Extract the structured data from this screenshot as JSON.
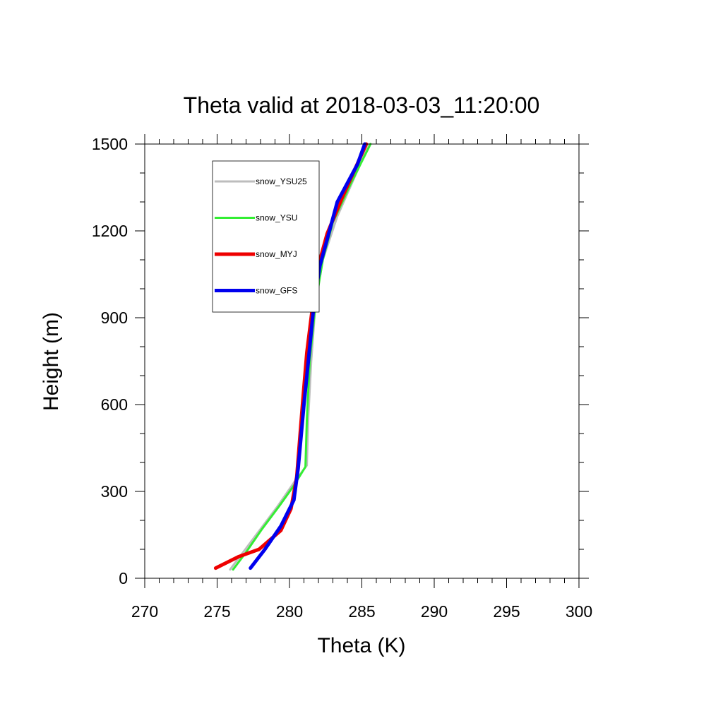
{
  "chart_data": {
    "type": "line",
    "title": "Theta valid at 2018-03-03_11:20:00",
    "xlabel": "Theta (K)",
    "ylabel": "Height (m)",
    "xlim": [
      270,
      300
    ],
    "ylim": [
      0,
      1500
    ],
    "xticks": [
      "270",
      "275",
      "280",
      "285",
      "290",
      "295",
      "300"
    ],
    "yticks": [
      "0",
      "300",
      "600",
      "900",
      "1200",
      "1500"
    ],
    "grid": false,
    "legend_position": "top-left",
    "series": [
      {
        "name": "snow_YSU25",
        "color": "#bdbdbd",
        "line_width": 3,
        "points": [
          [
            275.9,
            30
          ],
          [
            276.8,
            90
          ],
          [
            278.0,
            170
          ],
          [
            279.2,
            250
          ],
          [
            280.3,
            330
          ],
          [
            281.2,
            390
          ],
          [
            281.3,
            560
          ],
          [
            281.5,
            750
          ],
          [
            281.8,
            950
          ],
          [
            282.3,
            1100
          ],
          [
            283.3,
            1250
          ],
          [
            285.5,
            1500
          ]
        ]
      },
      {
        "name": "snow_YSU",
        "color": "#33ee33",
        "line_width": 3,
        "points": [
          [
            276.1,
            30
          ],
          [
            277.0,
            90
          ],
          [
            278.1,
            170
          ],
          [
            279.3,
            250
          ],
          [
            280.3,
            320
          ],
          [
            281.1,
            385
          ],
          [
            281.2,
            550
          ],
          [
            281.4,
            750
          ],
          [
            281.8,
            950
          ],
          [
            282.3,
            1100
          ],
          [
            283.0,
            1230
          ],
          [
            284.3,
            1370
          ],
          [
            285.6,
            1500
          ]
        ]
      },
      {
        "name": "snow_MYJ",
        "color": "#ee0000",
        "line_width": 5,
        "points": [
          [
            274.9,
            35
          ],
          [
            276.5,
            75
          ],
          [
            277.9,
            100
          ],
          [
            279.4,
            165
          ],
          [
            280.1,
            240
          ],
          [
            280.5,
            350
          ],
          [
            280.9,
            600
          ],
          [
            281.2,
            780
          ],
          [
            281.7,
            980
          ],
          [
            282.0,
            1080
          ],
          [
            282.6,
            1190
          ],
          [
            283.6,
            1310
          ],
          [
            285.3,
            1500
          ]
        ]
      },
      {
        "name": "snow_GFS",
        "color": "#0000ee",
        "line_width": 5,
        "points": [
          [
            277.3,
            35
          ],
          [
            278.3,
            100
          ],
          [
            279.4,
            180
          ],
          [
            280.3,
            270
          ],
          [
            280.6,
            380
          ],
          [
            281.0,
            600
          ],
          [
            281.3,
            750
          ],
          [
            281.7,
            950
          ],
          [
            282.1,
            1080
          ],
          [
            282.6,
            1170
          ],
          [
            283.3,
            1300
          ],
          [
            284.7,
            1430
          ],
          [
            285.2,
            1500
          ]
        ]
      }
    ]
  }
}
